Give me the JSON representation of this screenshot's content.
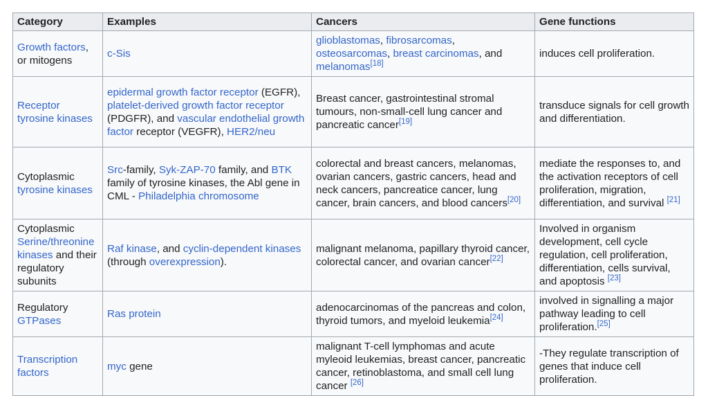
{
  "headers": [
    "Category",
    "Examples",
    "Cancers",
    "Gene functions"
  ],
  "rows": [
    {
      "category": [
        {
          "t": "Growth factors",
          "link": true
        },
        {
          "t": ", or mitogens"
        }
      ],
      "examples": [
        {
          "t": "c-Sis",
          "link": true
        }
      ],
      "cancers": [
        {
          "t": "glioblastomas",
          "link": true
        },
        {
          "t": ", "
        },
        {
          "t": "fibrosarcomas",
          "link": true
        },
        {
          "t": ", "
        },
        {
          "t": "osteosarcomas",
          "link": true
        },
        {
          "t": ", "
        },
        {
          "t": "breast carcinomas",
          "link": true
        },
        {
          "t": ", and "
        },
        {
          "t": "melanomas",
          "link": true
        },
        {
          "t": "[18]",
          "sup": true
        }
      ],
      "functions": [
        {
          "t": "induces cell proliferation."
        }
      ]
    },
    {
      "category": [
        {
          "t": "Receptor tyrosine kinases",
          "link": true
        }
      ],
      "examples": [
        {
          "t": "epidermal growth factor receptor",
          "link": true
        },
        {
          "t": " (EGFR), "
        },
        {
          "t": "platelet-derived growth factor receptor",
          "link": true
        },
        {
          "t": " (PDGFR), and "
        },
        {
          "t": "vascular endothelial growth factor",
          "link": true
        },
        {
          "t": " receptor (VEGFR), "
        },
        {
          "t": "HER2/neu",
          "link": true
        }
      ],
      "cancers": [
        {
          "t": "Breast cancer, gastrointestinal stromal tumours, non-small-cell lung cancer and pancreatic cancer"
        },
        {
          "t": "[19]",
          "sup": true
        }
      ],
      "functions": [
        {
          "t": "transduce signals for cell growth and differentiation."
        }
      ]
    },
    {
      "category": [
        {
          "t": "Cytoplasmic "
        },
        {
          "t": "tyrosine kinases",
          "link": true
        }
      ],
      "examples": [
        {
          "t": "Src",
          "link": true
        },
        {
          "t": "-family, "
        },
        {
          "t": "Syk-ZAP-70",
          "link": true
        },
        {
          "t": " family, and "
        },
        {
          "t": "BTK",
          "link": true
        },
        {
          "t": " family of tyrosine kinases, the Abl gene in CML - "
        },
        {
          "t": "Philadelphia chromosome",
          "link": true
        }
      ],
      "cancers": [
        {
          "t": "colorectal and breast cancers, melanomas, ovarian cancers, gastric cancers, head and neck cancers, pancreatice cancer, lung cancer, brain cancers, and blood cancers"
        },
        {
          "t": "[20]",
          "sup": true
        }
      ],
      "functions": [
        {
          "t": "mediate the responses to, and the activation receptors of cell proliferation, migration, differentiation, and survival "
        },
        {
          "t": "[21]",
          "sup": true
        }
      ]
    },
    {
      "category": [
        {
          "t": "Cytoplasmic "
        },
        {
          "t": "Serine/threonine kinases",
          "link": true
        },
        {
          "t": " and their regulatory subunits"
        }
      ],
      "examples": [
        {
          "t": "Raf kinase",
          "link": true
        },
        {
          "t": ", and "
        },
        {
          "t": "cyclin-dependent kinases",
          "link": true
        },
        {
          "t": " (through "
        },
        {
          "t": "overexpression",
          "link": true
        },
        {
          "t": ")."
        }
      ],
      "cancers": [
        {
          "t": "malignant melanoma, papillary thyroid cancer, colorectal cancer, and ovarian cancer"
        },
        {
          "t": "[22]",
          "sup": true
        }
      ],
      "functions": [
        {
          "t": "Involved in organism development, cell cycle regulation, cell proliferation, differentiation, cells survival, and apoptosis "
        },
        {
          "t": "[23]",
          "sup": true
        }
      ]
    },
    {
      "category": [
        {
          "t": "Regulatory "
        },
        {
          "t": "GTPases",
          "link": true
        }
      ],
      "examples": [
        {
          "t": "Ras protein",
          "link": true
        }
      ],
      "cancers": [
        {
          "t": "adenocarcinomas of the pancreas and colon, thyroid tumors, and myeloid leukemia"
        },
        {
          "t": "[24]",
          "sup": true
        }
      ],
      "functions": [
        {
          "t": "involved in signalling a major pathway leading to cell proliferation."
        },
        {
          "t": "[25]",
          "sup": true
        }
      ]
    },
    {
      "category": [
        {
          "t": "Transcription factors",
          "link": true
        }
      ],
      "examples": [
        {
          "t": "myc",
          "link": true
        },
        {
          "t": " gene"
        }
      ],
      "cancers": [
        {
          "t": "malignant T-cell lymphomas and acute myleoid leukemias, breast cancer, pancreatic cancer, retinoblastoma, and small cell lung cancer "
        },
        {
          "t": "[26]",
          "sup": true
        }
      ],
      "functions": [
        {
          "t": "-They regulate transcription of genes that induce cell proliferation."
        }
      ]
    }
  ]
}
